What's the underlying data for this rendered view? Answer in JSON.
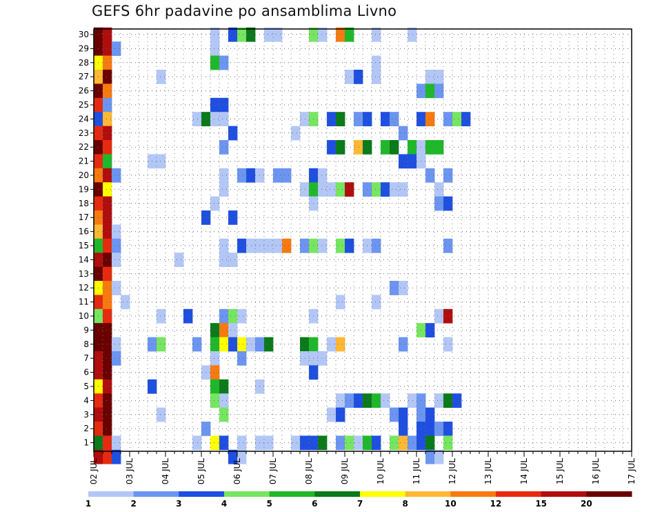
{
  "title": "GEFS 6hr padavine po ansamblima Livno",
  "chart_data": {
    "type": "heatmap",
    "title": "GEFS 6hr padavine po ansamblima Livno",
    "xlabel": "",
    "ylabel": "",
    "x_tick_labels": [
      "02 JUL",
      "03 JUL",
      "04 JUL",
      "05 JUL",
      "06 JUL",
      "07 JUL",
      "08 JUL",
      "09 JUL",
      "10 JUL",
      "11 JUL",
      "12 JUL",
      "13 JUL",
      "14 JUL",
      "15 JUL",
      "16 JUL",
      "17 JUL"
    ],
    "y_ticks": [
      1,
      2,
      3,
      4,
      5,
      6,
      7,
      8,
      9,
      10,
      11,
      12,
      13,
      14,
      15,
      16,
      17,
      18,
      19,
      20,
      21,
      22,
      23,
      24,
      25,
      26,
      27,
      28,
      29,
      30
    ],
    "x_steps_per_day": 4,
    "grid": true,
    "colorbar": {
      "labels": [
        "1",
        "2",
        "3",
        "4",
        "5",
        "6",
        "7",
        "8",
        "10",
        "12",
        "15",
        "20"
      ],
      "colors": [
        "#b3c7f7",
        "#6b95f0",
        "#1f4fe0",
        "#76e660",
        "#1fb82a",
        "#0a7a1a",
        "#ffff00",
        "#ffb833",
        "#f77a10",
        "#e62a10",
        "#b00e0e",
        "#6b0000"
      ]
    },
    "cells": [
      [
        30,
        0,
        11
      ],
      [
        30,
        1,
        10
      ],
      [
        30,
        13,
        0
      ],
      [
        30,
        15,
        2
      ],
      [
        30,
        16,
        3
      ],
      [
        30,
        17,
        5
      ],
      [
        30,
        19,
        0
      ],
      [
        30,
        20,
        0
      ],
      [
        30,
        24,
        3
      ],
      [
        30,
        25,
        0
      ],
      [
        30,
        27,
        8
      ],
      [
        30,
        28,
        4
      ],
      [
        30,
        31,
        0
      ],
      [
        30,
        35,
        0
      ],
      [
        29,
        0,
        11
      ],
      [
        29,
        1,
        10
      ],
      [
        29,
        2,
        1
      ],
      [
        29,
        13,
        0
      ],
      [
        28,
        0,
        6
      ],
      [
        28,
        1,
        8
      ],
      [
        28,
        13,
        4
      ],
      [
        28,
        14,
        1
      ],
      [
        28,
        31,
        0
      ],
      [
        27,
        0,
        7
      ],
      [
        27,
        1,
        11
      ],
      [
        27,
        7,
        0
      ],
      [
        27,
        28,
        0
      ],
      [
        27,
        29,
        2
      ],
      [
        27,
        31,
        0
      ],
      [
        27,
        37,
        0
      ],
      [
        27,
        38,
        0
      ],
      [
        26,
        0,
        11
      ],
      [
        26,
        1,
        8
      ],
      [
        26,
        36,
        1
      ],
      [
        26,
        37,
        4
      ],
      [
        26,
        38,
        1
      ],
      [
        25,
        0,
        9
      ],
      [
        25,
        1,
        1
      ],
      [
        25,
        13,
        2
      ],
      [
        25,
        14,
        2
      ],
      [
        24,
        0,
        2
      ],
      [
        24,
        1,
        7
      ],
      [
        24,
        11,
        0
      ],
      [
        24,
        12,
        5
      ],
      [
        24,
        13,
        0
      ],
      [
        24,
        14,
        0
      ],
      [
        24,
        23,
        0
      ],
      [
        24,
        24,
        3
      ],
      [
        24,
        26,
        2
      ],
      [
        24,
        27,
        5
      ],
      [
        24,
        29,
        1
      ],
      [
        24,
        30,
        2
      ],
      [
        24,
        32,
        2
      ],
      [
        24,
        33,
        1
      ],
      [
        24,
        36,
        2
      ],
      [
        24,
        37,
        8
      ],
      [
        24,
        39,
        1
      ],
      [
        24,
        40,
        3
      ],
      [
        24,
        41,
        2
      ],
      [
        23,
        0,
        9
      ],
      [
        23,
        1,
        10
      ],
      [
        23,
        15,
        2
      ],
      [
        23,
        22,
        0
      ],
      [
        23,
        34,
        1
      ],
      [
        22,
        0,
        11
      ],
      [
        22,
        1,
        9
      ],
      [
        22,
        14,
        1
      ],
      [
        22,
        26,
        2
      ],
      [
        22,
        27,
        5
      ],
      [
        22,
        29,
        7
      ],
      [
        22,
        30,
        5
      ],
      [
        22,
        32,
        4
      ],
      [
        22,
        33,
        5
      ],
      [
        22,
        35,
        4
      ],
      [
        22,
        36,
        0
      ],
      [
        22,
        37,
        4
      ],
      [
        22,
        38,
        4
      ],
      [
        21,
        0,
        9
      ],
      [
        21,
        1,
        4
      ],
      [
        21,
        6,
        0
      ],
      [
        21,
        7,
        0
      ],
      [
        21,
        34,
        2
      ],
      [
        21,
        35,
        2
      ],
      [
        21,
        36,
        0
      ],
      [
        20,
        0,
        8
      ],
      [
        20,
        1,
        10
      ],
      [
        20,
        2,
        1
      ],
      [
        20,
        14,
        0
      ],
      [
        20,
        16,
        1
      ],
      [
        20,
        17,
        2
      ],
      [
        20,
        18,
        0
      ],
      [
        20,
        20,
        1
      ],
      [
        20,
        21,
        1
      ],
      [
        20,
        24,
        2
      ],
      [
        20,
        25,
        0
      ],
      [
        20,
        37,
        1
      ],
      [
        20,
        39,
        1
      ],
      [
        19,
        0,
        11
      ],
      [
        19,
        1,
        6
      ],
      [
        19,
        14,
        0
      ],
      [
        19,
        23,
        0
      ],
      [
        19,
        24,
        4
      ],
      [
        19,
        25,
        0
      ],
      [
        19,
        26,
        0
      ],
      [
        19,
        27,
        3
      ],
      [
        19,
        28,
        10
      ],
      [
        19,
        30,
        1
      ],
      [
        19,
        31,
        3
      ],
      [
        19,
        32,
        2
      ],
      [
        19,
        33,
        0
      ],
      [
        19,
        34,
        0
      ],
      [
        19,
        38,
        0
      ],
      [
        18,
        0,
        9
      ],
      [
        18,
        1,
        10
      ],
      [
        18,
        13,
        0
      ],
      [
        18,
        24,
        0
      ],
      [
        18,
        38,
        1
      ],
      [
        18,
        39,
        2
      ],
      [
        17,
        0,
        8
      ],
      [
        17,
        1,
        10
      ],
      [
        17,
        12,
        2
      ],
      [
        17,
        15,
        2
      ],
      [
        16,
        0,
        7
      ],
      [
        16,
        1,
        10
      ],
      [
        16,
        2,
        0
      ],
      [
        15,
        0,
        4
      ],
      [
        15,
        1,
        9
      ],
      [
        15,
        2,
        1
      ],
      [
        15,
        14,
        0
      ],
      [
        15,
        16,
        2
      ],
      [
        15,
        17,
        0
      ],
      [
        15,
        18,
        0
      ],
      [
        15,
        19,
        0
      ],
      [
        15,
        20,
        0
      ],
      [
        15,
        21,
        8
      ],
      [
        15,
        23,
        1
      ],
      [
        15,
        24,
        3
      ],
      [
        15,
        25,
        0
      ],
      [
        15,
        27,
        3
      ],
      [
        15,
        28,
        2
      ],
      [
        15,
        30,
        0
      ],
      [
        15,
        31,
        1
      ],
      [
        15,
        39,
        1
      ],
      [
        14,
        0,
        10
      ],
      [
        14,
        1,
        11
      ],
      [
        14,
        2,
        0
      ],
      [
        14,
        9,
        0
      ],
      [
        14,
        14,
        0
      ],
      [
        14,
        15,
        0
      ],
      [
        13,
        0,
        11
      ],
      [
        13,
        1,
        9
      ],
      [
        12,
        0,
        6
      ],
      [
        12,
        1,
        8
      ],
      [
        12,
        2,
        0
      ],
      [
        12,
        33,
        1
      ],
      [
        12,
        34,
        0
      ],
      [
        11,
        0,
        9
      ],
      [
        11,
        1,
        8
      ],
      [
        11,
        3,
        0
      ],
      [
        11,
        27,
        0
      ],
      [
        11,
        31,
        0
      ],
      [
        10,
        0,
        3
      ],
      [
        10,
        1,
        9
      ],
      [
        10,
        7,
        0
      ],
      [
        10,
        10,
        2
      ],
      [
        10,
        14,
        1
      ],
      [
        10,
        15,
        3
      ],
      [
        10,
        16,
        0
      ],
      [
        10,
        24,
        0
      ],
      [
        10,
        38,
        0
      ],
      [
        10,
        39,
        10
      ],
      [
        9,
        0,
        11
      ],
      [
        9,
        1,
        11
      ],
      [
        9,
        13,
        5
      ],
      [
        9,
        14,
        8
      ],
      [
        9,
        15,
        0
      ],
      [
        9,
        36,
        3
      ],
      [
        9,
        37,
        2
      ],
      [
        8,
        0,
        11
      ],
      [
        8,
        1,
        11
      ],
      [
        8,
        2,
        0
      ],
      [
        8,
        6,
        1
      ],
      [
        8,
        7,
        3
      ],
      [
        8,
        11,
        1
      ],
      [
        8,
        13,
        4
      ],
      [
        8,
        14,
        6
      ],
      [
        8,
        15,
        2
      ],
      [
        8,
        16,
        6
      ],
      [
        8,
        17,
        0
      ],
      [
        8,
        18,
        1
      ],
      [
        8,
        19,
        5
      ],
      [
        8,
        23,
        5
      ],
      [
        8,
        24,
        4
      ],
      [
        8,
        26,
        0
      ],
      [
        8,
        27,
        7
      ],
      [
        8,
        34,
        1
      ],
      [
        8,
        39,
        0
      ],
      [
        7,
        0,
        10
      ],
      [
        7,
        1,
        11
      ],
      [
        7,
        2,
        1
      ],
      [
        7,
        13,
        0
      ],
      [
        7,
        16,
        1
      ],
      [
        7,
        23,
        0
      ],
      [
        7,
        24,
        0
      ],
      [
        7,
        25,
        0
      ],
      [
        6,
        0,
        10
      ],
      [
        6,
        1,
        11
      ],
      [
        6,
        12,
        0
      ],
      [
        6,
        13,
        8
      ],
      [
        6,
        24,
        2
      ],
      [
        5,
        0,
        6
      ],
      [
        5,
        1,
        10
      ],
      [
        5,
        6,
        2
      ],
      [
        5,
        13,
        4
      ],
      [
        5,
        14,
        5
      ],
      [
        5,
        18,
        0
      ],
      [
        4,
        0,
        9
      ],
      [
        4,
        1,
        11
      ],
      [
        4,
        13,
        3
      ],
      [
        4,
        14,
        0
      ],
      [
        4,
        27,
        0
      ],
      [
        4,
        28,
        1
      ],
      [
        4,
        29,
        2
      ],
      [
        4,
        30,
        5
      ],
      [
        4,
        31,
        4
      ],
      [
        4,
        32,
        0
      ],
      [
        4,
        35,
        0
      ],
      [
        4,
        36,
        1
      ],
      [
        4,
        38,
        0
      ],
      [
        4,
        39,
        5
      ],
      [
        4,
        40,
        2
      ],
      [
        3,
        0,
        10
      ],
      [
        3,
        1,
        11
      ],
      [
        3,
        7,
        0
      ],
      [
        3,
        14,
        3
      ],
      [
        3,
        26,
        0
      ],
      [
        3,
        27,
        2
      ],
      [
        3,
        33,
        1
      ],
      [
        3,
        34,
        2
      ],
      [
        3,
        36,
        1
      ],
      [
        3,
        37,
        2
      ],
      [
        2,
        0,
        9
      ],
      [
        2,
        1,
        11
      ],
      [
        2,
        12,
        1
      ],
      [
        2,
        34,
        2
      ],
      [
        2,
        36,
        2
      ],
      [
        2,
        37,
        2
      ],
      [
        2,
        38,
        1
      ],
      [
        2,
        39,
        2
      ],
      [
        1,
        0,
        5
      ],
      [
        1,
        1,
        9
      ],
      [
        1,
        2,
        0
      ],
      [
        1,
        11,
        0
      ],
      [
        1,
        13,
        6
      ],
      [
        1,
        14,
        2
      ],
      [
        1,
        16,
        0
      ],
      [
        1,
        18,
        0
      ],
      [
        1,
        19,
        0
      ],
      [
        1,
        22,
        0
      ],
      [
        1,
        23,
        2
      ],
      [
        1,
        24,
        2
      ],
      [
        1,
        25,
        5
      ],
      [
        1,
        27,
        1
      ],
      [
        1,
        28,
        3
      ],
      [
        1,
        29,
        0
      ],
      [
        1,
        30,
        4
      ],
      [
        1,
        31,
        2
      ],
      [
        1,
        33,
        3
      ],
      [
        1,
        34,
        7
      ],
      [
        1,
        35,
        1
      ],
      [
        1,
        36,
        2
      ],
      [
        1,
        37,
        5
      ],
      [
        1,
        39,
        3
      ],
      [
        0,
        0,
        10
      ],
      [
        0,
        1,
        9
      ],
      [
        0,
        2,
        2
      ],
      [
        0,
        15,
        2
      ],
      [
        0,
        16,
        0
      ],
      [
        0,
        37,
        1
      ],
      [
        0,
        38,
        0
      ]
    ]
  }
}
